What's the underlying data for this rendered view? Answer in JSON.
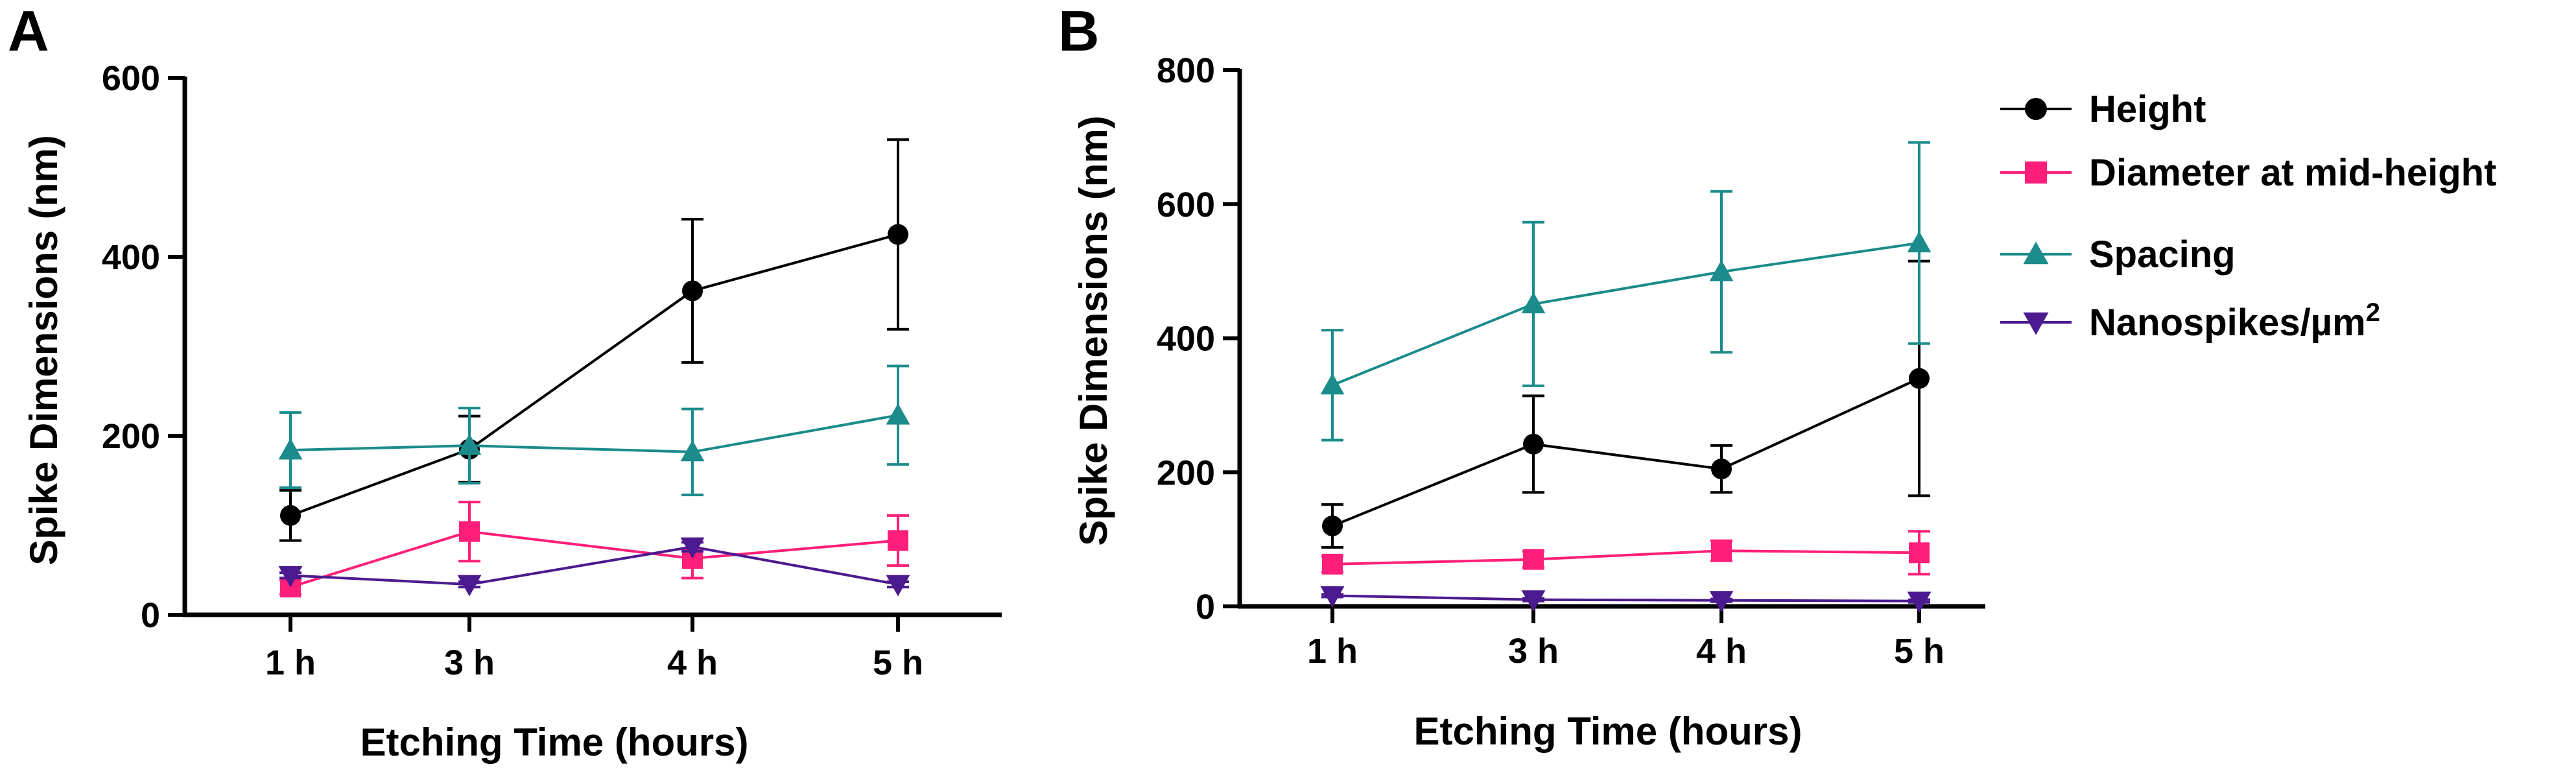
{
  "chart_data": [
    {
      "panel": "A",
      "type": "line",
      "categories": [
        "1 h",
        "3 h",
        "4 h",
        "5 h"
      ],
      "xlabel": "Etching Time (hours)",
      "ylabel": "Spike Dimensions (nm)",
      "ylim": [
        0,
        600
      ],
      "yticks": [
        "0",
        "200",
        "400",
        "600"
      ],
      "series": [
        {
          "name": "Height",
          "color": "#000000",
          "marker": "circle",
          "values": [
            111,
            185,
            362,
            425
          ],
          "errors": [
            28,
            37,
            80,
            106
          ]
        },
        {
          "name": "Diameter at mid-height",
          "color": "#ff1f7a",
          "marker": "square",
          "values": [
            31,
            93,
            63,
            83
          ],
          "errors": [
            8,
            33,
            22,
            28
          ]
        },
        {
          "name": "Spacing",
          "color": "#1b8b8b",
          "marker": "triangle-up",
          "values": [
            184,
            189,
            182,
            223
          ],
          "errors": [
            42,
            42,
            48,
            55
          ]
        },
        {
          "name": "Nanospikes/µm2",
          "color": "#4b1a8f",
          "marker": "triangle-down",
          "values": [
            44,
            34,
            76,
            34
          ],
          "errors": [
            3,
            3,
            5,
            3
          ]
        }
      ]
    },
    {
      "panel": "B",
      "type": "line",
      "categories": [
        "1 h",
        "3 h",
        "4 h",
        "5 h"
      ],
      "xlabel": "Etching Time (hours)",
      "ylabel": "Spike Dimensions (nm)",
      "ylim": [
        0,
        800
      ],
      "yticks": [
        "0",
        "200",
        "400",
        "600",
        "800"
      ],
      "series": [
        {
          "name": "Height",
          "color": "#000000",
          "marker": "circle",
          "values": [
            120,
            242,
            205,
            340
          ],
          "errors": [
            32,
            72,
            35,
            175
          ]
        },
        {
          "name": "Diameter at mid-height",
          "color": "#ff1f7a",
          "marker": "square",
          "values": [
            63,
            70,
            83,
            80
          ],
          "errors": [
            12,
            12,
            15,
            32
          ]
        },
        {
          "name": "Spacing",
          "color": "#1b8b8b",
          "marker": "triangle-up",
          "values": [
            330,
            451,
            499,
            542
          ],
          "errors": [
            82,
            122,
            120,
            150
          ]
        },
        {
          "name": "Nanospikes/µm2",
          "color": "#4b1a8f",
          "marker": "triangle-down",
          "values": [
            16,
            10,
            9,
            8
          ],
          "errors": [
            2,
            2,
            2,
            2
          ]
        }
      ]
    }
  ],
  "legend": {
    "items": [
      {
        "label": "Height",
        "color": "#000000",
        "marker": "circle"
      },
      {
        "label": "Diameter at mid-height",
        "color": "#ff1f7a",
        "marker": "square"
      },
      {
        "label": "Spacing",
        "color": "#1b8b8b",
        "marker": "triangle-up"
      },
      {
        "label": "Nanospikes/µm",
        "superscript": "2",
        "color": "#4b1a8f",
        "marker": "triangle-down"
      }
    ]
  }
}
